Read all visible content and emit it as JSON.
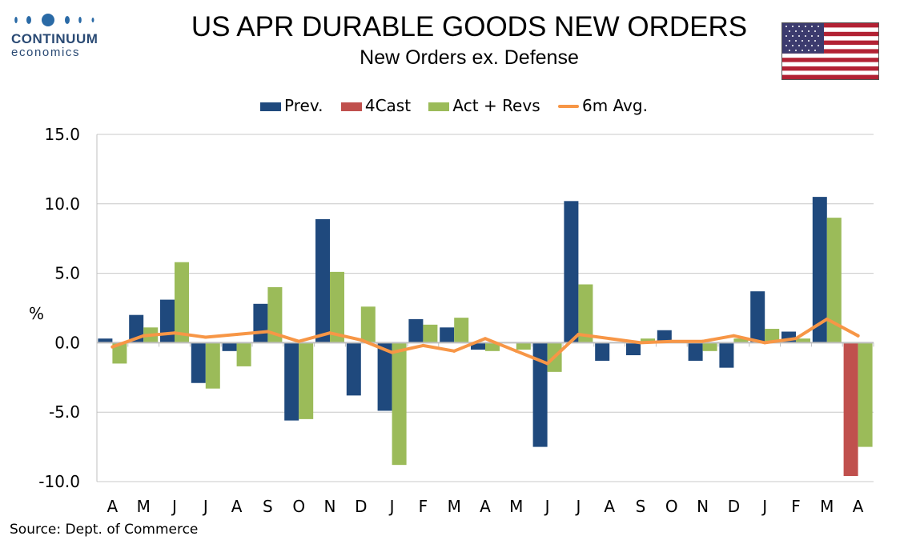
{
  "header": {
    "brand_name": "CONTINUUM",
    "brand_sub": "economics",
    "title": "US APR DURABLE GOODS NEW ORDERS",
    "subtitle": "New Orders ex. Defense"
  },
  "flag_icon": "us-flag-icon",
  "colors": {
    "prev": "#1f497d",
    "forecast": "#c0504d",
    "actual": "#9bbb59",
    "avg": "#f79646",
    "grid": "#c8c8c8",
    "axis": "#bfbfbf"
  },
  "source": "Source: Dept. of Commerce",
  "chart_data": {
    "type": "bar",
    "title": "US APR DURABLE GOODS NEW ORDERS",
    "subtitle": "New Orders ex. Defense",
    "ylabel": "%",
    "ylim": [
      -10,
      15
    ],
    "yticks": [
      "15.0",
      "10.0",
      "5.0",
      "0.0",
      "-5.0",
      "-10.0"
    ],
    "ytick_values": [
      15,
      10,
      5,
      0,
      -5,
      -10
    ],
    "grid": true,
    "legend_position": "top",
    "categories": [
      "A",
      "M",
      "J",
      "J",
      "A",
      "S",
      "O",
      "N",
      "D",
      "J",
      "F",
      "M",
      "A",
      "M",
      "J",
      "J",
      "A",
      "S",
      "O",
      "N",
      "D",
      "J",
      "F",
      "M",
      "A"
    ],
    "series": [
      {
        "name": "Prev.",
        "kind": "bar",
        "values": [
          0.3,
          2.0,
          3.1,
          -2.9,
          -0.6,
          2.8,
          -5.6,
          8.9,
          -3.8,
          -4.9,
          1.7,
          1.1,
          -0.5,
          0.0,
          -7.5,
          10.2,
          -1.3,
          -0.9,
          0.9,
          -1.3,
          -1.8,
          3.7,
          0.8,
          10.5,
          0.0
        ]
      },
      {
        "name": "4Cast",
        "kind": "bar",
        "values": [
          null,
          null,
          null,
          null,
          null,
          null,
          null,
          null,
          null,
          null,
          null,
          null,
          null,
          null,
          null,
          null,
          null,
          null,
          null,
          null,
          null,
          null,
          null,
          null,
          -9.6
        ]
      },
      {
        "name": "Act + Revs",
        "kind": "bar",
        "values": [
          -1.5,
          1.1,
          5.8,
          -3.3,
          -1.7,
          4.0,
          -5.5,
          5.1,
          2.6,
          -8.8,
          1.3,
          1.8,
          -0.6,
          -0.5,
          -2.1,
          4.2,
          0.0,
          0.3,
          0.0,
          -0.6,
          0.3,
          1.0,
          0.3,
          9.0,
          -7.5
        ]
      },
      {
        "name": "6m Avg.",
        "kind": "line",
        "values": [
          -0.3,
          0.5,
          0.7,
          0.4,
          0.6,
          0.8,
          0.1,
          0.7,
          0.2,
          -0.7,
          -0.2,
          -0.6,
          0.3,
          -0.6,
          -1.5,
          0.6,
          0.3,
          0.0,
          0.1,
          0.1,
          0.5,
          0.0,
          0.3,
          1.7,
          0.5
        ]
      }
    ]
  }
}
